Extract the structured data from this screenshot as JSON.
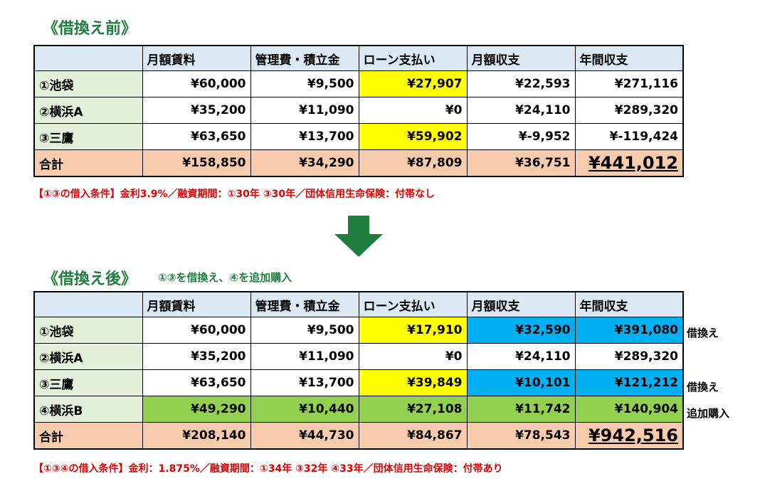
{
  "before": {
    "title": "《借換え前》",
    "headers": [
      "",
      "月額賃料",
      "管理費・積立金",
      "ローン支払い",
      "月額収支",
      "年間収支"
    ],
    "rows": [
      {
        "label": "①池袋",
        "rent": "¥60,000",
        "mgmt": "¥9,500",
        "loan": "¥27,907",
        "monthly": "¥22,593",
        "annual": "¥271,116"
      },
      {
        "label": "②横浜A",
        "rent": "¥35,200",
        "mgmt": "¥11,090",
        "loan": "¥0",
        "monthly": "¥24,110",
        "annual": "¥289,320"
      },
      {
        "label": "③三鷹",
        "rent": "¥63,650",
        "mgmt": "¥13,700",
        "loan": "¥59,902",
        "monthly": "¥-9,952",
        "annual": "¥-119,424"
      }
    ],
    "total": {
      "label": "合計",
      "rent": "¥158,850",
      "mgmt": "¥34,290",
      "loan": "¥87,809",
      "monthly": "¥36,751",
      "annual": "¥441,012"
    },
    "note": "【①③の借入条件】金利3.9%／融資期間：①30年 ③30年／団体信用生命保険：付帯なし"
  },
  "after": {
    "title": "《借換え後》",
    "subtitle": "①③を借換え、④を追加購入",
    "headers": [
      "",
      "月額賃料",
      "管理費・積立金",
      "ローン支払い",
      "月額収支",
      "年間収支"
    ],
    "rows": [
      {
        "label": "①池袋",
        "rent": "¥60,000",
        "mgmt": "¥9,500",
        "loan": "¥17,910",
        "monthly": "¥32,590",
        "annual": "¥391,080",
        "side": "借換え"
      },
      {
        "label": "②横浜A",
        "rent": "¥35,200",
        "mgmt": "¥11,090",
        "loan": "¥0",
        "monthly": "¥24,110",
        "annual": "¥289,320",
        "side": ""
      },
      {
        "label": "③三鷹",
        "rent": "¥63,650",
        "mgmt": "¥13,700",
        "loan": "¥39,849",
        "monthly": "¥10,101",
        "annual": "¥121,212",
        "side": "借換え"
      },
      {
        "label": "④横浜B",
        "rent": "¥49,290",
        "mgmt": "¥10,440",
        "loan": "¥27,108",
        "monthly": "¥11,742",
        "annual": "¥140,904",
        "side": "追加購入"
      }
    ],
    "total": {
      "label": "合計",
      "rent": "¥208,140",
      "mgmt": "¥44,730",
      "loan": "¥84,867",
      "monthly": "¥78,543",
      "annual": "¥942,516"
    },
    "note": "【①③④の借入条件】金利：1.875%／融資期間：①34年 ③32年 ④33年／団体信用生命保険：付帯あり"
  },
  "colors": {
    "title": "#1e7f3c",
    "header": "#dbe9f5",
    "rowlabel": "#e2efd9",
    "total": "#f8cbad",
    "yellow": "#ffff00",
    "blue": "#00b0f0",
    "green": "#92d050",
    "grand": "#ffc000",
    "note": "#e00000",
    "arrow": "#1e7f3c"
  },
  "icons": {
    "arrow": "down-arrow-icon"
  }
}
